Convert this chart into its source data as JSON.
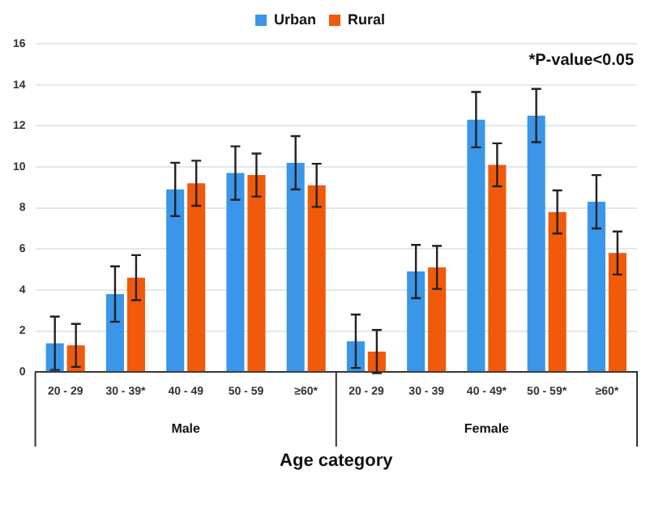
{
  "chart_data": {
    "type": "bar",
    "categories": [
      "20 - 29",
      "30 - 39*",
      "40 - 49",
      "50 - 59",
      "≥60*",
      "20 - 29",
      "30 - 39",
      "40 - 49*",
      "50 - 59*",
      "≥60*"
    ],
    "series": [
      {
        "name": "Urban",
        "color": "#3a96e8",
        "values": [
          1.4,
          3.8,
          8.9,
          9.7,
          10.2,
          1.5,
          4.9,
          12.3,
          12.5,
          8.3
        ],
        "errors": [
          1.3,
          1.35,
          1.3,
          1.3,
          1.3,
          1.3,
          1.3,
          1.35,
          1.3,
          1.3
        ]
      },
      {
        "name": "Rural",
        "color": "#f05a0a",
        "values": [
          1.3,
          4.6,
          9.2,
          9.6,
          9.1,
          1.0,
          5.1,
          10.1,
          7.8,
          5.8
        ],
        "errors": [
          1.05,
          1.1,
          1.1,
          1.05,
          1.05,
          1.05,
          1.05,
          1.05,
          1.05,
          1.05
        ]
      }
    ],
    "xlabel": "Age category",
    "annotations": [
      "*P-value<0.05",
      "Male",
      "Female"
    ],
    "ylim": [
      0,
      16
    ],
    "yticks": [
      0,
      2,
      4,
      6,
      8,
      10,
      12,
      14,
      16
    ],
    "grid": "y",
    "legend": "top"
  }
}
